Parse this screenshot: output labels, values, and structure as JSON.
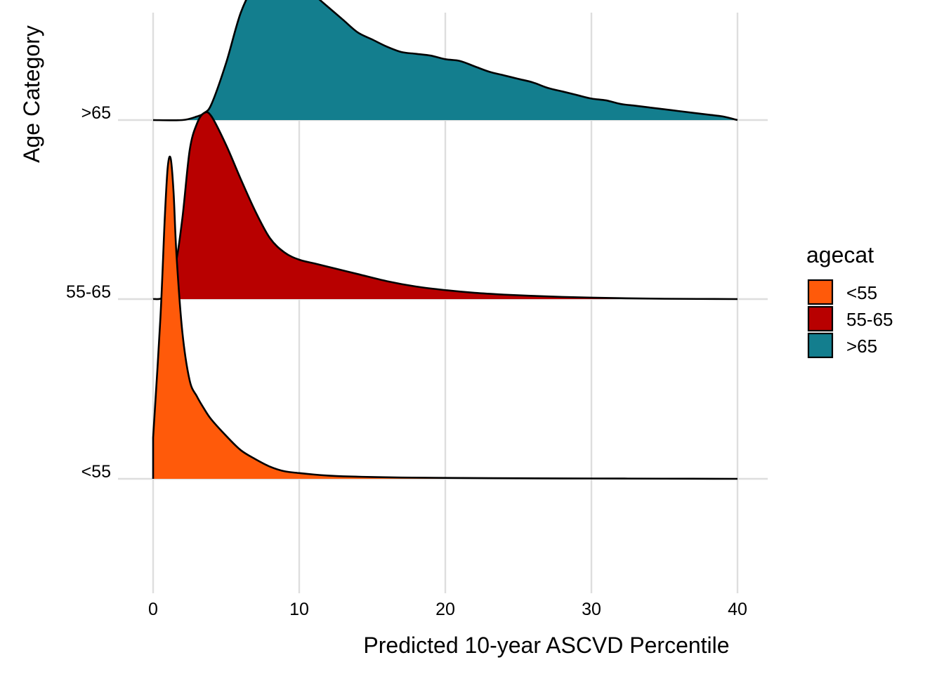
{
  "chart_data": {
    "type": "area",
    "subtype": "ridgeline-density",
    "xlabel": "Predicted 10-year ASCVD Percentile",
    "ylabel": "Age Category",
    "xlim": [
      0,
      40
    ],
    "x_ticks": [
      "0",
      "10",
      "20",
      "30",
      "40"
    ],
    "x_tick_values": [
      0,
      10,
      20,
      30,
      40
    ],
    "y_categories": [
      "<55",
      "55-65",
      ">65"
    ],
    "grid": true,
    "legend": {
      "title": "agecat",
      "position": "right",
      "entries": [
        "<55",
        "55-65",
        ">65"
      ]
    },
    "density_scale_note": "y values are relative density heights in units of the spacing between category baselines",
    "series": [
      {
        "name": "<55",
        "color": "#ff5a0a",
        "x": [
          0,
          0.5,
          0.8,
          1.0,
          1.2,
          1.4,
          1.6,
          2.0,
          2.5,
          3,
          3.5,
          4,
          5,
          6,
          7,
          8,
          9,
          10,
          11,
          12,
          13,
          15,
          17,
          20,
          25,
          30,
          35,
          40
        ],
        "y": [
          0.23,
          0.9,
          1.46,
          1.74,
          1.79,
          1.6,
          1.25,
          0.82,
          0.55,
          0.46,
          0.39,
          0.33,
          0.24,
          0.16,
          0.11,
          0.068,
          0.042,
          0.032,
          0.024,
          0.018,
          0.014,
          0.01,
          0.007,
          0.005,
          0.003,
          0.002,
          0.001,
          0.0
        ]
      },
      {
        "name": "55-65",
        "color": "#b80000",
        "x": [
          0,
          0.8,
          1.5,
          2.0,
          2.5,
          3,
          3.5,
          4,
          5,
          6,
          7,
          8,
          9,
          10,
          11,
          12,
          14,
          16,
          18,
          20,
          22,
          24,
          26,
          28,
          30,
          32,
          35,
          40
        ],
        "y": [
          0.0,
          0.02,
          0.18,
          0.45,
          0.83,
          0.98,
          1.04,
          1.02,
          0.86,
          0.67,
          0.49,
          0.34,
          0.26,
          0.22,
          0.2,
          0.18,
          0.14,
          0.1,
          0.07,
          0.05,
          0.035,
          0.025,
          0.018,
          0.012,
          0.008,
          0.005,
          0.002,
          0.0
        ]
      },
      {
        "name": ">65",
        "color": "#137e8e",
        "x": [
          0,
          2,
          3,
          3.5,
          4,
          5,
          6,
          7,
          8,
          9,
          10,
          11,
          12,
          13,
          14,
          15,
          16,
          17,
          18,
          19,
          20,
          21,
          22,
          23,
          24,
          25,
          26,
          27,
          28,
          29,
          30,
          31,
          32,
          33,
          34,
          35,
          36,
          37,
          38,
          39,
          40
        ],
        "y": [
          0.0,
          0.0,
          0.02,
          0.04,
          0.09,
          0.32,
          0.6,
          0.76,
          0.83,
          0.82,
          0.77,
          0.7,
          0.63,
          0.56,
          0.49,
          0.45,
          0.41,
          0.38,
          0.37,
          0.36,
          0.34,
          0.33,
          0.3,
          0.27,
          0.25,
          0.23,
          0.21,
          0.18,
          0.16,
          0.14,
          0.12,
          0.11,
          0.09,
          0.08,
          0.07,
          0.06,
          0.05,
          0.04,
          0.03,
          0.02,
          0.0
        ]
      }
    ]
  }
}
